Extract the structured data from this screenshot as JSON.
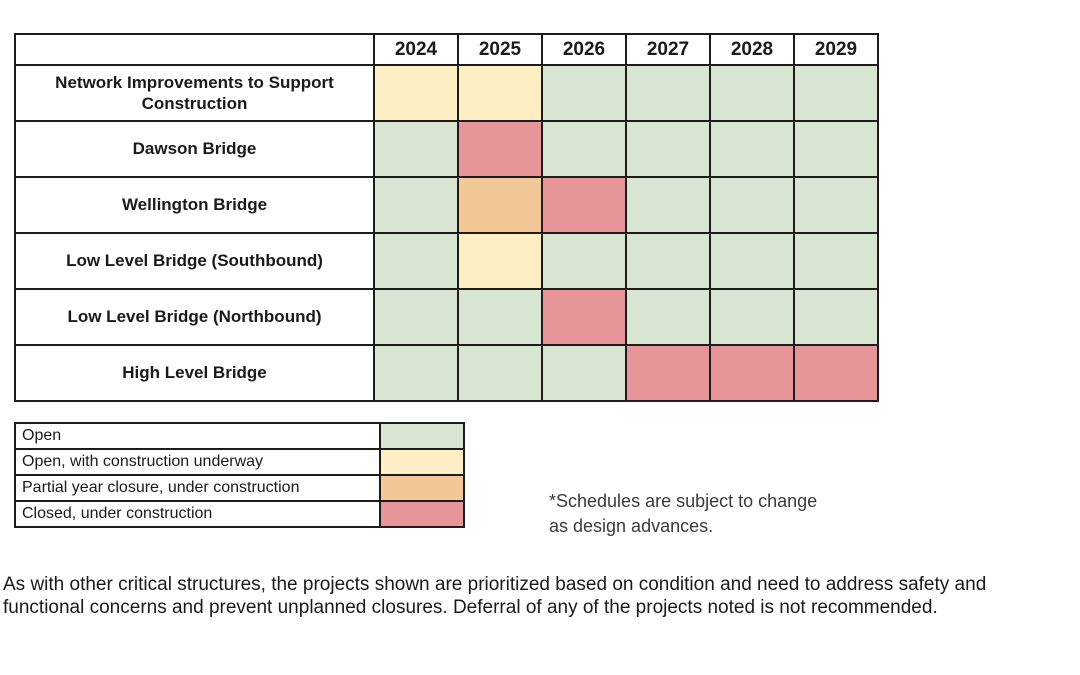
{
  "chart_data": {
    "type": "table",
    "categories": [
      "2024",
      "2025",
      "2026",
      "2027",
      "2028",
      "2029"
    ],
    "rows": [
      {
        "label": "Network Improvements to Support Construction",
        "statuses": [
          "open_construction",
          "open_construction",
          "open",
          "open",
          "open",
          "open"
        ]
      },
      {
        "label": "Dawson Bridge",
        "statuses": [
          "open",
          "closed",
          "open",
          "open",
          "open",
          "open"
        ]
      },
      {
        "label": "Wellington Bridge",
        "statuses": [
          "open",
          "partial",
          "closed",
          "open",
          "open",
          "open"
        ]
      },
      {
        "label": "Low Level Bridge (Southbound)",
        "statuses": [
          "open",
          "open_construction",
          "open",
          "open",
          "open",
          "open"
        ]
      },
      {
        "label": "Low Level Bridge (Northbound)",
        "statuses": [
          "open",
          "open",
          "closed",
          "open",
          "open",
          "open"
        ]
      },
      {
        "label": "High Level Bridge",
        "statuses": [
          "open",
          "open",
          "open",
          "closed",
          "closed",
          "closed"
        ]
      }
    ],
    "legend": [
      {
        "label": "Open",
        "status": "open"
      },
      {
        "label": "Open, with construction underway",
        "status": "open_construction"
      },
      {
        "label": "Partial year closure, under construction",
        "status": "partial"
      },
      {
        "label": "Closed, under construction",
        "status": "closed"
      }
    ],
    "status_colors": {
      "open": "#d7e5d1",
      "open_construction": "#fdeec3",
      "partial": "#f3c797",
      "closed": "#e79599"
    },
    "note": "*Schedules are subject to change\nas design advances.",
    "footer_paragraph": "As with other critical structures, the projects shown are prioritized based on condition and need to address safety and functional concerns and prevent unplanned closures. Deferral of any of the projects noted is not recommended."
  }
}
